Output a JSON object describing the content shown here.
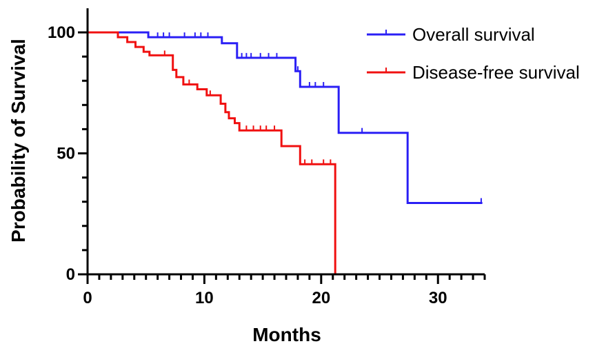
{
  "chart_data": {
    "type": "line",
    "title": "",
    "xlabel": "Months",
    "ylabel": "Probability of Survival",
    "xlim": [
      0,
      34
    ],
    "ylim": [
      0,
      100
    ],
    "x_ticks": [
      0,
      10,
      20,
      30
    ],
    "y_ticks": [
      0,
      50,
      100
    ],
    "grid": false,
    "legend_position": "top-right",
    "series": [
      {
        "name": "Overall survival",
        "color": "#2a1ff5",
        "steps": [
          [
            0,
            100
          ],
          [
            5.2,
            100
          ],
          [
            5.2,
            98
          ],
          [
            11.5,
            98
          ],
          [
            11.5,
            95.5
          ],
          [
            12.8,
            95.5
          ],
          [
            12.8,
            89.5
          ],
          [
            17.8,
            89.5
          ],
          [
            17.8,
            84
          ],
          [
            18.2,
            84
          ],
          [
            18.2,
            77.5
          ],
          [
            21.5,
            77.5
          ],
          [
            21.5,
            58.5
          ],
          [
            27.4,
            58.5
          ],
          [
            27.4,
            29.5
          ],
          [
            33.8,
            29.5
          ]
        ],
        "censored": [
          [
            6,
            98
          ],
          [
            6.5,
            98
          ],
          [
            7,
            98
          ],
          [
            8.3,
            98
          ],
          [
            9.2,
            98
          ],
          [
            9.7,
            98
          ],
          [
            10.3,
            98
          ],
          [
            13.2,
            89.5
          ],
          [
            13.6,
            89.5
          ],
          [
            14,
            89.5
          ],
          [
            14.8,
            89.5
          ],
          [
            15.5,
            89.5
          ],
          [
            16.2,
            89.5
          ],
          [
            18,
            84
          ],
          [
            19,
            77.5
          ],
          [
            19.5,
            77.5
          ],
          [
            20.2,
            77.5
          ],
          [
            23.5,
            58.5
          ],
          [
            33.7,
            29.5
          ]
        ]
      },
      {
        "name": "Disease-free survival",
        "color": "#f01010",
        "steps": [
          [
            0,
            100
          ],
          [
            2.6,
            100
          ],
          [
            2.6,
            98
          ],
          [
            3.4,
            98
          ],
          [
            3.4,
            96
          ],
          [
            4.1,
            96
          ],
          [
            4.1,
            94
          ],
          [
            4.8,
            94
          ],
          [
            4.8,
            92
          ],
          [
            5.3,
            92
          ],
          [
            5.3,
            90.5
          ],
          [
            7.3,
            90.5
          ],
          [
            7.3,
            84.5
          ],
          [
            7.6,
            84.5
          ],
          [
            7.6,
            81.5
          ],
          [
            8.2,
            81.5
          ],
          [
            8.2,
            78.5
          ],
          [
            9.4,
            78.5
          ],
          [
            9.4,
            76.5
          ],
          [
            10.2,
            76.5
          ],
          [
            10.2,
            74
          ],
          [
            11.4,
            74
          ],
          [
            11.4,
            70.5
          ],
          [
            11.8,
            70.5
          ],
          [
            11.8,
            67
          ],
          [
            12.1,
            67
          ],
          [
            12.1,
            64.5
          ],
          [
            12.6,
            64.5
          ],
          [
            12.6,
            62.5
          ],
          [
            13,
            62.5
          ],
          [
            13,
            59.5
          ],
          [
            16.6,
            59.5
          ],
          [
            16.6,
            53
          ],
          [
            18.2,
            53
          ],
          [
            18.2,
            45.5
          ],
          [
            21.2,
            45.5
          ],
          [
            21.2,
            0
          ]
        ],
        "censored": [
          [
            6.6,
            90.5
          ],
          [
            8.7,
            78.5
          ],
          [
            10.5,
            74
          ],
          [
            13.6,
            59.5
          ],
          [
            14.2,
            59.5
          ],
          [
            14.8,
            59.5
          ],
          [
            15.3,
            59.5
          ],
          [
            16,
            59.5
          ],
          [
            18.6,
            45.5
          ],
          [
            19.2,
            45.5
          ],
          [
            20.2,
            45.5
          ],
          [
            20.8,
            45.5
          ]
        ]
      }
    ]
  }
}
